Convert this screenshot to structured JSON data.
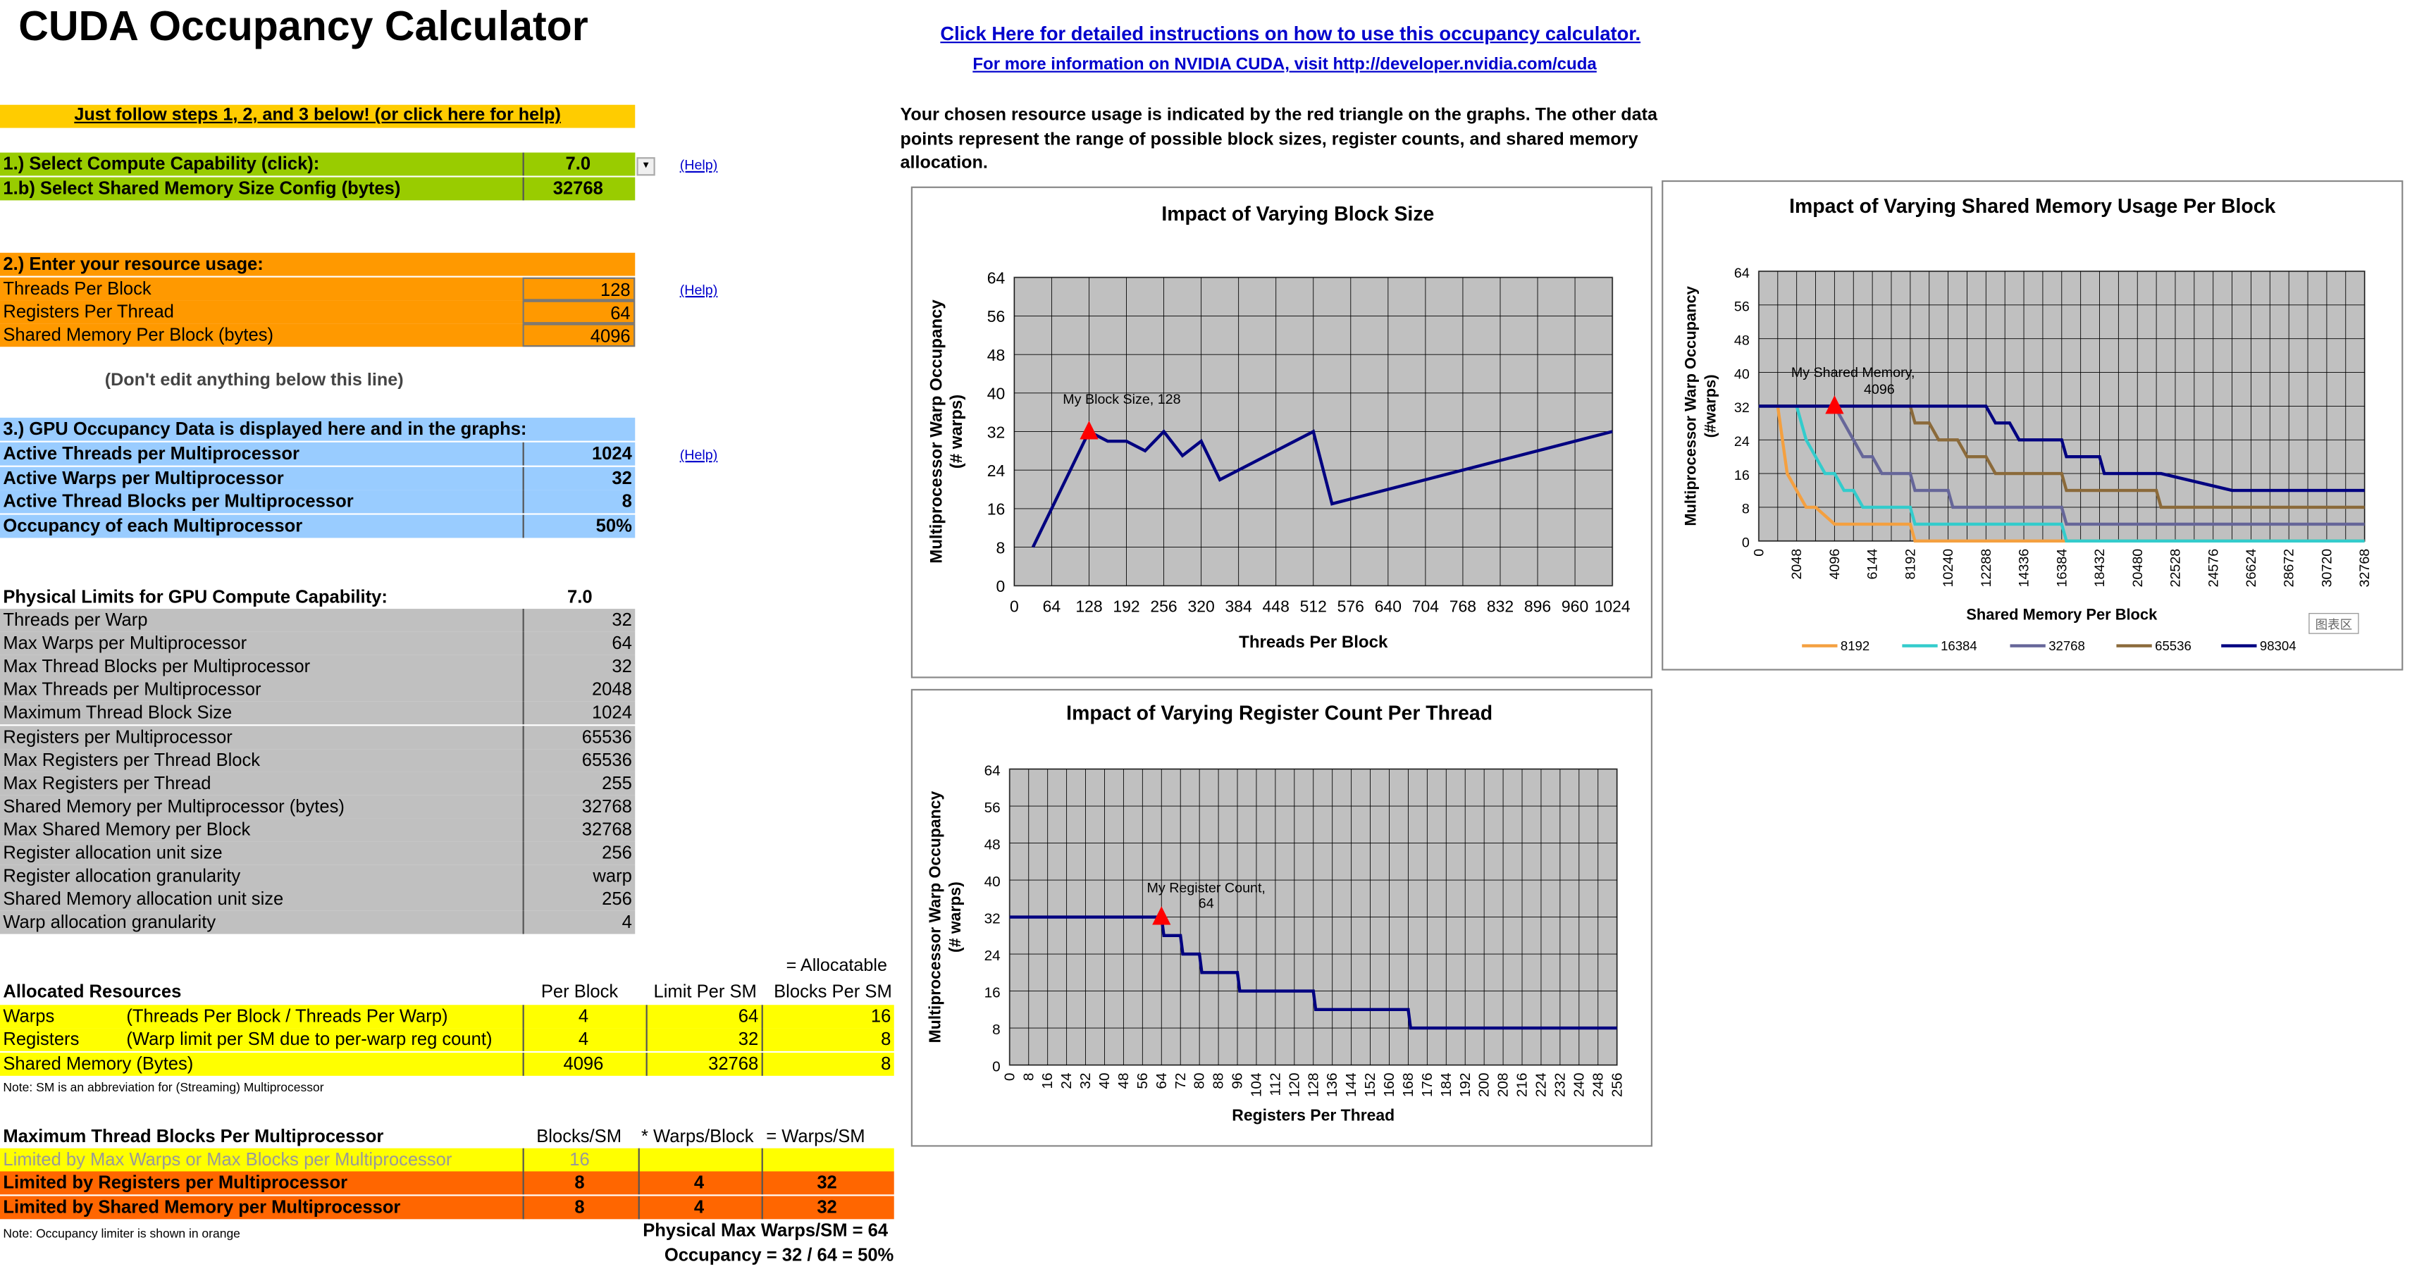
{
  "title": "CUDA Occupancy Calculator",
  "links": {
    "instructions": "Click Here for detailed instructions on how to use this occupancy calculator.",
    "cuda_info": "For more information on NVIDIA CUDA, visit http://developer.nvidia.com/cuda"
  },
  "steps_banner": "Just follow steps 1, 2, and 3 below! (or click here for help)",
  "step1": {
    "cc_label": "1.) Select Compute Capability (click):",
    "cc_value": "7.0",
    "smem_label": "1.b) Select Shared Memory Size Config (bytes)",
    "smem_value": "32768",
    "help": "(Help)"
  },
  "step2": {
    "heading": "2.) Enter your resource usage:",
    "threads_label": "Threads Per Block",
    "threads_value": "128",
    "regs_label": "Registers Per Thread",
    "regs_value": "64",
    "smem_label": "Shared Memory Per Block (bytes)",
    "smem_value": "4096",
    "help": "(Help)"
  },
  "dont_edit": "(Don't edit anything below this line)",
  "step3": {
    "heading": "3.) GPU Occupancy Data is displayed here and in the graphs:",
    "help": "(Help)",
    "rows": [
      {
        "label": "Active Threads per Multiprocessor",
        "value": "1024"
      },
      {
        "label": "Active Warps per Multiprocessor",
        "value": "32"
      },
      {
        "label": "Active Thread Blocks per Multiprocessor",
        "value": "8"
      },
      {
        "label": "Occupancy of each Multiprocessor",
        "value": "50%"
      }
    ]
  },
  "limits": {
    "heading": "Physical Limits for GPU Compute Capability:",
    "cc": "7.0",
    "rows": [
      {
        "label": "Threads per Warp",
        "value": "32"
      },
      {
        "label": "Max Warps per Multiprocessor",
        "value": "64"
      },
      {
        "label": "Max Thread Blocks per Multiprocessor",
        "value": "32"
      },
      {
        "label": "Max Threads per Multiprocessor",
        "value": "2048"
      },
      {
        "label": "Maximum Thread Block Size",
        "value": "1024"
      },
      {
        "label": "Registers per Multiprocessor",
        "value": "65536"
      },
      {
        "label": "Max Registers per Thread Block",
        "value": "65536"
      },
      {
        "label": "Max Registers per Thread",
        "value": "255"
      },
      {
        "label": "Shared Memory per Multiprocessor (bytes)",
        "value": "32768"
      },
      {
        "label": "Max Shared Memory per Block",
        "value": "32768"
      },
      {
        "label": "Register allocation unit size",
        "value": "256"
      },
      {
        "label": "Register allocation granularity",
        "value": "warp"
      },
      {
        "label": "Shared Memory allocation unit size",
        "value": "256"
      },
      {
        "label": "Warp allocation granularity",
        "value": "4"
      }
    ]
  },
  "allocated": {
    "allocatable_note": "= Allocatable",
    "heading": "Allocated Resources",
    "col_per_block": "Per Block",
    "col_limit": "Limit Per SM",
    "col_blocks": "Blocks Per SM",
    "rows": [
      {
        "label": "Warps",
        "desc": "(Threads Per Block / Threads Per Warp)",
        "per_block": "4",
        "limit": "64",
        "blocks": "16"
      },
      {
        "label": "Registers",
        "desc": "(Warp limit per SM due to per-warp reg count)",
        "per_block": "4",
        "limit": "32",
        "blocks": "8"
      },
      {
        "label": "Shared Memory (Bytes)",
        "desc": "",
        "per_block": "4096",
        "limit": "32768",
        "blocks": "8"
      }
    ],
    "note": "Note: SM is an abbreviation for (Streaming) Multiprocessor"
  },
  "maxblocks": {
    "heading": "Maximum Thread Blocks Per Multiprocessor",
    "col1": "Blocks/SM",
    "col2": "* Warps/Block",
    "col3": "= Warps/SM",
    "rows": [
      {
        "label": "Limited by Max Warps or Max Blocks per Multiprocessor",
        "blocks": "16",
        "warps": "",
        "total": ""
      },
      {
        "label": "Limited by Registers per Multiprocessor",
        "blocks": "8",
        "warps": "4",
        "total": "32"
      },
      {
        "label": "Limited by Shared Memory per Multiprocessor",
        "blocks": "8",
        "warps": "4",
        "total": "32"
      }
    ],
    "note": "Note: Occupancy limiter is shown in orange",
    "physical": "Physical Max Warps/SM = 64",
    "occupancy": "Occupancy = 32 / 64 = 50%"
  },
  "description": "Your chosen resource usage is indicated by the red triangle on the graphs.  The other data points represent the range of possible block sizes, register counts, and shared memory allocation.",
  "chart_data": [
    {
      "type": "line",
      "title": "Impact of Varying Block Size",
      "xlabel": "Threads Per Block",
      "ylabel": "Multiprocessor Warp Occupancy (# warps)",
      "xticks": [
        "0",
        "64",
        "128",
        "192",
        "256",
        "320",
        "384",
        "448",
        "512",
        "576",
        "640",
        "704",
        "768",
        "832",
        "896",
        "960",
        "1024"
      ],
      "xlim": [
        0,
        1024
      ],
      "ylim": [
        0,
        64
      ],
      "yticks": [
        0,
        8,
        16,
        24,
        32,
        40,
        48,
        56,
        64
      ],
      "color": "#000080",
      "x": [
        32,
        128,
        160,
        192,
        224,
        256,
        288,
        320,
        352,
        384,
        512,
        544,
        1024
      ],
      "y": [
        8,
        32,
        30,
        30,
        28,
        32,
        27,
        30,
        22,
        24,
        32,
        17,
        32
      ],
      "marker": {
        "x": 128,
        "y": 32,
        "label": "My Block Size, 128"
      }
    },
    {
      "type": "line",
      "title": "Impact of Varying Shared Memory Usage Per Block",
      "xlabel": "Shared Memory Per Block",
      "ylabel": "Multiprocessor Warp Occupancy (#warps)",
      "xticks": [
        "0",
        "2048",
        "4096",
        "6144",
        "8192",
        "10240",
        "12288",
        "14336",
        "16384",
        "18432",
        "20480",
        "22528",
        "24576",
        "26624",
        "28672",
        "30720",
        "32768"
      ],
      "xlim": [
        0,
        32768
      ],
      "ylim": [
        0,
        64
      ],
      "yticks": [
        0,
        8,
        16,
        24,
        32,
        40,
        48,
        56,
        64
      ],
      "legend_position": "bottom",
      "series": [
        {
          "name": "8192",
          "color": "#f4a040",
          "x": [
            0,
            1024,
            1280,
            1536,
            2048,
            2560,
            3072,
            4096,
            8192,
            8448,
            32768
          ],
          "y": [
            32,
            32,
            24,
            16,
            12,
            8,
            8,
            4,
            4,
            0,
            0
          ]
        },
        {
          "name": "16384",
          "color": "#33cccc",
          "x": [
            0,
            2048,
            2560,
            3072,
            3584,
            4096,
            4608,
            5120,
            5632,
            6144,
            8192,
            8448,
            16384,
            16640,
            32768
          ],
          "y": [
            32,
            32,
            24,
            20,
            16,
            16,
            12,
            12,
            8,
            8,
            8,
            4,
            4,
            0,
            0
          ]
        },
        {
          "name": "32768",
          "color": "#666699",
          "x": [
            0,
            4096,
            4608,
            5120,
            5632,
            6144,
            6656,
            8192,
            8448,
            10240,
            10496,
            16384,
            16640,
            32768
          ],
          "y": [
            32,
            32,
            28,
            24,
            20,
            20,
            16,
            16,
            12,
            12,
            8,
            8,
            4,
            4
          ]
        },
        {
          "name": "65536",
          "color": "#8b6a3a",
          "x": [
            0,
            8192,
            8448,
            9216,
            9728,
            10752,
            11264,
            12288,
            12800,
            14336,
            16384,
            16640,
            21504,
            21760,
            32768
          ],
          "y": [
            32,
            32,
            28,
            28,
            24,
            24,
            20,
            20,
            16,
            16,
            16,
            12,
            12,
            8,
            8
          ]
        },
        {
          "name": "98304",
          "color": "#000080",
          "x": [
            0,
            12288,
            12800,
            13568,
            14080,
            16384,
            16640,
            18432,
            18688,
            21504,
            21760,
            25600,
            25856,
            32768
          ],
          "y": [
            32,
            32,
            28,
            28,
            24,
            24,
            20,
            20,
            16,
            16,
            16,
            12,
            12,
            12
          ]
        }
      ],
      "marker": {
        "x": 4096,
        "y": 32,
        "label": "My Shared Memory, 4096"
      },
      "corner_tag": "图表区"
    },
    {
      "type": "line",
      "title": "Impact of Varying Register Count Per Thread",
      "xlabel": "Registers Per Thread",
      "ylabel": "Multiprocessor Warp Occupancy (# warps)",
      "xticks": [
        "0",
        "8",
        "16",
        "24",
        "32",
        "40",
        "48",
        "56",
        "64",
        "72",
        "80",
        "88",
        "96",
        "104",
        "112",
        "120",
        "128",
        "136",
        "144",
        "152",
        "160",
        "168",
        "176",
        "184",
        "192",
        "200",
        "208",
        "216",
        "224",
        "232",
        "240",
        "248",
        "256"
      ],
      "xlim": [
        0,
        256
      ],
      "ylim": [
        0,
        64
      ],
      "yticks": [
        0,
        8,
        16,
        24,
        32,
        40,
        48,
        56,
        64
      ],
      "color": "#000080",
      "x": [
        0,
        64,
        65,
        72,
        73,
        80,
        81,
        96,
        97,
        128,
        129,
        168,
        169,
        256
      ],
      "y": [
        32,
        32,
        28,
        28,
        24,
        24,
        20,
        20,
        16,
        16,
        12,
        12,
        8,
        8
      ],
      "marker": {
        "x": 64,
        "y": 32,
        "label": "My Register Count, 64"
      }
    }
  ]
}
